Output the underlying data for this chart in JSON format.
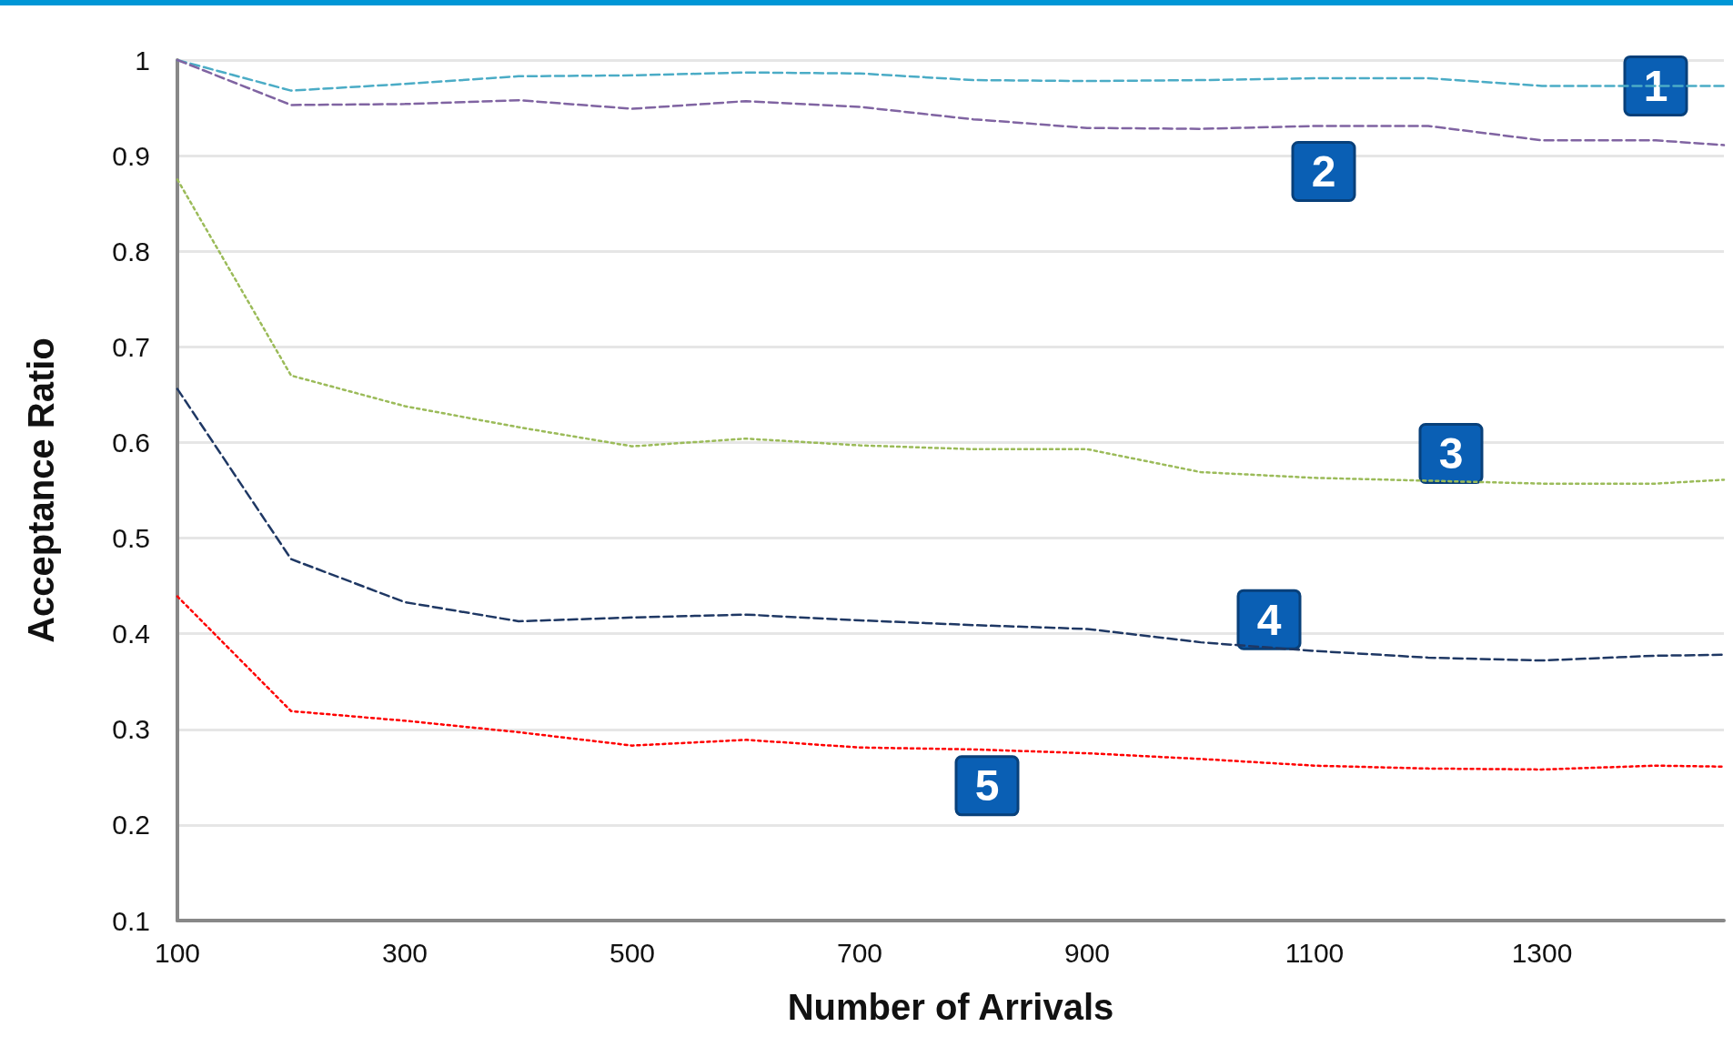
{
  "chart_data": {
    "type": "line",
    "xlabel": "Number of Arrivals",
    "ylabel": "Acceptance Ratio",
    "x": [
      100,
      200,
      300,
      400,
      500,
      600,
      700,
      800,
      900,
      1000,
      1100,
      1200,
      1300,
      1400,
      1460
    ],
    "series": [
      {
        "name": "1",
        "color": "#4bacc6",
        "line_style": "dashed",
        "values": [
          1.0,
          0.968,
          0.975,
          0.983,
          0.984,
          0.987,
          0.986,
          0.979,
          0.978,
          0.979,
          0.981,
          0.981,
          0.973,
          0.973,
          0.973
        ]
      },
      {
        "name": "2",
        "color": "#8064a2",
        "line_style": "dashed",
        "values": [
          1.0,
          0.953,
          0.954,
          0.958,
          0.949,
          0.957,
          0.951,
          0.938,
          0.929,
          0.928,
          0.931,
          0.931,
          0.916,
          0.916,
          0.911
        ]
      },
      {
        "name": "3",
        "color": "#9bbb59",
        "line_style": "dotted",
        "values": [
          0.875,
          0.67,
          0.638,
          0.616,
          0.596,
          0.604,
          0.597,
          0.593,
          0.593,
          0.569,
          0.563,
          0.56,
          0.557,
          0.557,
          0.561
        ]
      },
      {
        "name": "4",
        "color": "#1f3864",
        "line_style": "dashed",
        "values": [
          0.656,
          0.478,
          0.433,
          0.413,
          0.417,
          0.42,
          0.414,
          0.409,
          0.405,
          0.391,
          0.382,
          0.375,
          0.372,
          0.377,
          0.378
        ]
      },
      {
        "name": "5",
        "color": "#ff0000",
        "line_style": "dotted",
        "values": [
          0.439,
          0.319,
          0.309,
          0.297,
          0.283,
          0.289,
          0.281,
          0.279,
          0.275,
          0.269,
          0.262,
          0.259,
          0.258,
          0.262,
          0.261
        ]
      }
    ],
    "xlim": [
      100,
      1460
    ],
    "xticks": [
      100,
      300,
      500,
      700,
      900,
      1100,
      1300
    ],
    "ylim": [
      0.1,
      1
    ],
    "yticks": [
      0.1,
      0.2,
      0.3,
      0.4,
      0.5,
      0.6,
      0.7,
      0.8,
      0.9,
      1
    ],
    "grid": "y",
    "marker": "none"
  }
}
